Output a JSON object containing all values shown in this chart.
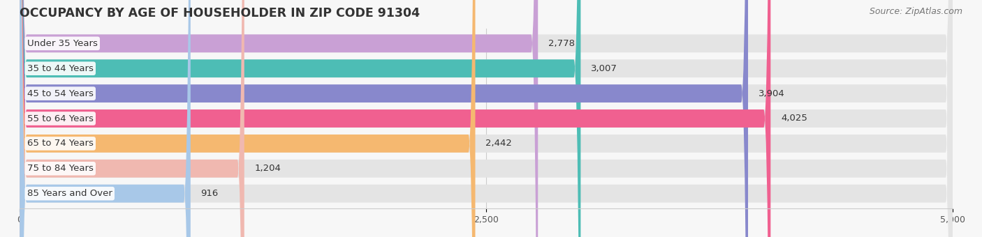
{
  "title": "OCCUPANCY BY AGE OF HOUSEHOLDER IN ZIP CODE 91304",
  "source": "Source: ZipAtlas.com",
  "categories": [
    "Under 35 Years",
    "35 to 44 Years",
    "45 to 54 Years",
    "55 to 64 Years",
    "65 to 74 Years",
    "75 to 84 Years",
    "85 Years and Over"
  ],
  "values": [
    2778,
    3007,
    3904,
    4025,
    2442,
    1204,
    916
  ],
  "bar_colors": [
    "#c9a0d5",
    "#4dbdb5",
    "#8888cc",
    "#f06090",
    "#f5b870",
    "#f0b8b0",
    "#a8c8e8"
  ],
  "xlim": [
    0,
    5000
  ],
  "xticks": [
    0,
    2500,
    5000
  ],
  "background_color": "#f7f7f7",
  "bar_bg_color": "#e4e4e4",
  "title_fontsize": 12.5,
  "source_fontsize": 9,
  "bar_height": 0.72,
  "value_fontsize": 9.5,
  "label_fontsize": 9.5
}
